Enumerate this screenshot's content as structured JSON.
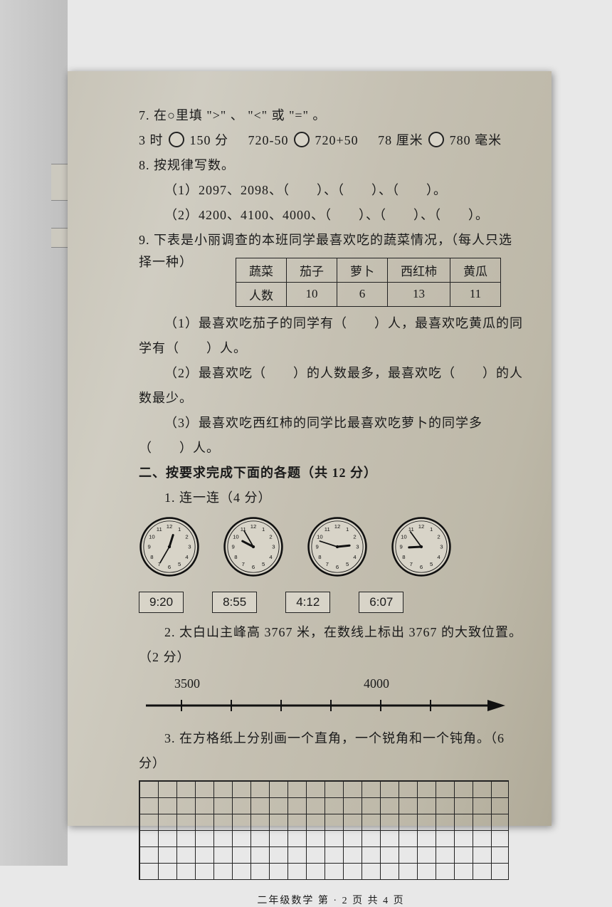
{
  "q7": {
    "prompt": "7. 在○里填 \">\" 、 \"<\" 或 \"=\" 。",
    "expr_a_left": "3 时",
    "expr_a_right": "150 分",
    "expr_b_left": "720-50",
    "expr_b_right": "720+50",
    "expr_c_left": "78 厘米",
    "expr_c_right": "780 毫米"
  },
  "q8": {
    "prompt": "8. 按规律写数。",
    "line1": "（1）2097、2098、（　　）、（　　）、（　　）。",
    "line2": "（2）4200、4100、4000、（　　）、（　　）、（　　）。"
  },
  "q9": {
    "prompt_a": "9. 下表是小丽调查的本班同学最喜欢吃的蔬菜情况，（每人只选",
    "prompt_b": "择一种）",
    "headers": [
      "蔬菜",
      "茄子",
      "萝卜",
      "西红柿",
      "黄瓜"
    ],
    "rowlabel": "人数",
    "values": [
      "10",
      "6",
      "13",
      "11"
    ],
    "sub1": "（1）最喜欢吃茄子的同学有（　　）人，最喜欢吃黄瓜的同",
    "sub1b": "学有（　　）人。",
    "sub2": "（2）最喜欢吃（　　）的人数最多，最喜欢吃（　　）的人数最少。",
    "sub3": "（3）最喜欢吃西红柿的同学比最喜欢吃萝卜的同学多（　　）人。"
  },
  "section2": {
    "title": "二、按要求完成下面的各题（共 12 分）",
    "q1": "1. 连一连（4 分）",
    "clocks": [
      {
        "hour": 12,
        "minute": 35
      },
      {
        "hour": 9,
        "minute": 55
      },
      {
        "hour": 2,
        "minute": 48
      },
      {
        "hour": 8,
        "minute": 54
      }
    ],
    "times": [
      "9:20",
      "8:55",
      "4:12",
      "6:07"
    ],
    "q2": "2. 太白山主峰高 3767 米，在数线上标出 3767 的大致位置。（2 分）",
    "numline_left": "3500",
    "numline_right": "4000",
    "q3": "3. 在方格纸上分别画一个直角，一个锐角和一个钝角。（6 分）"
  },
  "footer": "二年级数学  第 · 2 页  共 4 页"
}
